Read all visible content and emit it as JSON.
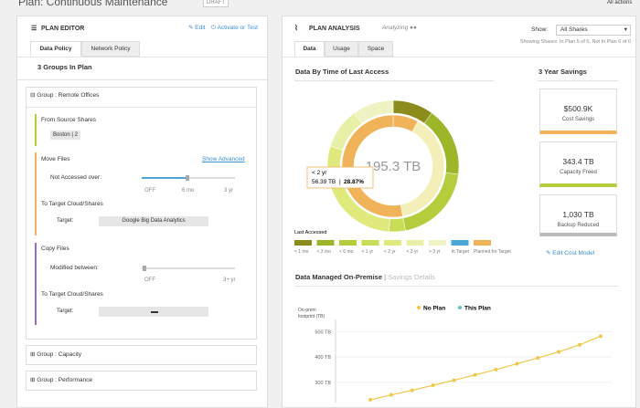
{
  "header": {
    "title": "Plan: Continuous Maintenance",
    "badge": "DRAFT",
    "actions": "All actions"
  },
  "editor": {
    "title": "PLAN EDITOR",
    "edit": "Edit",
    "activate": "Activate or Test",
    "tabs": [
      "Data Policy",
      "Network Policy"
    ],
    "group_count": "3 Groups In Plan",
    "groups": [
      "Group : Remote Offices",
      "Group : Capacity",
      "Group : Performance"
    ],
    "source_title": "From Source Shares",
    "source": "Boston | 2",
    "move": {
      "title": "Move Files",
      "advanced": "Show Advanced",
      "field": "Not Accessed over:",
      "slider": [
        "OFF",
        "6 mo",
        "3 yr"
      ],
      "target_title": "To Target Cloud/Shares",
      "target_label": "Target:",
      "target": "Google Big Data Analytics"
    },
    "copy": {
      "title": "Copy Files",
      "field": "Modified between:",
      "slider": [
        "OFF",
        "3+ yr"
      ],
      "target_title": "To Target Cloud/Shares",
      "target_label": "Target:"
    }
  },
  "analysis": {
    "title": "PLAN ANALYSIS",
    "status": "Analyzing",
    "show_label": "Show:",
    "show_value": "All Shares",
    "showing": "Showing Shares: In Plan 5 of 5, Not In Plan 0 of 0",
    "tabs": [
      "Data",
      "Usage",
      "Space"
    ],
    "donut": {
      "title": "Data By Time of Last Access",
      "center": "195.3 TB",
      "tooltip": {
        "label": "< 2 yr",
        "value": "56.39 TB",
        "sep": "|",
        "pct": "28.87%"
      },
      "legend_title": "Last Accessed",
      "segments": [
        {
          "name": "< 1 mo",
          "color": "#8c8c1c",
          "value": 10
        },
        {
          "name": "< 3 mo",
          "color": "#9db629",
          "value": 17
        },
        {
          "name": "< 6 mo",
          "color": "#b5cd3c",
          "value": 20
        },
        {
          "name": "< 1 yr",
          "color": "#c9dc55",
          "value": 4
        },
        {
          "name": "< 2 yr",
          "color": "#dfe97c",
          "value": 28.87
        },
        {
          "name": "< 3 yr",
          "color": "#e8efa6",
          "value": 10
        },
        {
          "name": "> 3 yr",
          "color": "#eff3c4",
          "value": 10.13
        }
      ],
      "inner": {
        "values": [
          8,
          39,
          53
        ],
        "colors": [
          "#f0b35a",
          "#f4efb8",
          "#f0b35a"
        ]
      },
      "targets": [
        {
          "name": "In Target",
          "color": "#4aa7d8"
        },
        {
          "name": "Planned for Target",
          "color": "#f0b35a"
        }
      ]
    },
    "savings": {
      "title": "3 Year Savings",
      "cards": [
        {
          "value": "$500.9K",
          "label": "Cost Savings",
          "color": "#f0b35a"
        },
        {
          "value": "343.4 TB",
          "label": "Capacity Freed",
          "color": "#b5cd3c"
        },
        {
          "value": "1,030 TB",
          "label": "Backup Reduced",
          "color": "#bbbbbb"
        }
      ],
      "edit": "Edit Cost Model"
    },
    "line": {
      "type": "line",
      "title": "Data Managed On-Premise",
      "sep": "|",
      "link": "Savings Details",
      "ylabel": [
        "On-prem",
        "footprint (TB)"
      ],
      "ylim": [
        220,
        530
      ],
      "yticks": [
        {
          "value": 300,
          "label": "300 TB"
        },
        {
          "value": 400,
          "label": "400 TB"
        },
        {
          "value": 500,
          "label": "500 TB"
        }
      ],
      "grid": true,
      "series": [
        {
          "name": "No Plan",
          "color": "#f0c84a",
          "values": [
            231,
            250,
            268,
            288,
            308,
            329,
            350,
            373,
            396,
            420,
            448,
            482
          ]
        },
        {
          "name": "This Plan",
          "color": "#5bc0c8",
          "values": []
        }
      ]
    }
  }
}
